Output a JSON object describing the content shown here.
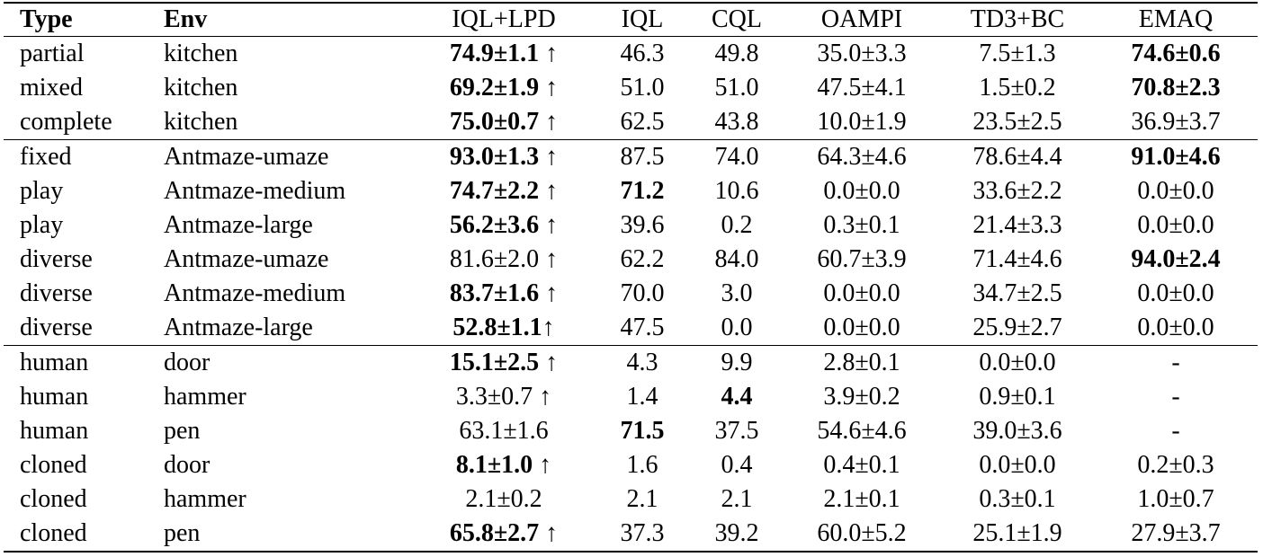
{
  "table": {
    "header": [
      "Type",
      "Env",
      "IQL+LPD",
      "IQL",
      "CQL",
      "OAMPI",
      "TD3+BC",
      "EMAQ"
    ],
    "header_bold": [
      true,
      true,
      false,
      false,
      false,
      false,
      false,
      false
    ],
    "groups": [
      {
        "rows": [
          {
            "cells": [
              "partial",
              "kitchen",
              "74.9±1.1 ↑",
              "46.3",
              "49.8",
              "35.0±3.3",
              "7.5±1.3",
              "74.6±0.6"
            ],
            "bold": [
              false,
              false,
              true,
              false,
              false,
              false,
              false,
              true
            ]
          },
          {
            "cells": [
              "mixed",
              "kitchen",
              "69.2±1.9 ↑",
              "51.0",
              "51.0",
              "47.5±4.1",
              "1.5±0.2",
              "70.8±2.3"
            ],
            "bold": [
              false,
              false,
              true,
              false,
              false,
              false,
              false,
              true
            ]
          },
          {
            "cells": [
              "complete",
              "kitchen",
              "75.0±0.7 ↑",
              "62.5",
              "43.8",
              "10.0±1.9",
              "23.5±2.5",
              "36.9±3.7"
            ],
            "bold": [
              false,
              false,
              true,
              false,
              false,
              false,
              false,
              false
            ]
          }
        ]
      },
      {
        "rows": [
          {
            "cells": [
              "fixed",
              "Antmaze-umaze",
              "93.0±1.3 ↑",
              "87.5",
              "74.0",
              "64.3±4.6",
              "78.6±4.4",
              "91.0±4.6"
            ],
            "bold": [
              false,
              false,
              true,
              false,
              false,
              false,
              false,
              true
            ]
          },
          {
            "cells": [
              "play",
              "Antmaze-medium",
              "74.7±2.2 ↑",
              "71.2",
              "10.6",
              "0.0±0.0",
              "33.6±2.2",
              "0.0±0.0"
            ],
            "bold": [
              false,
              false,
              true,
              true,
              false,
              false,
              false,
              false
            ]
          },
          {
            "cells": [
              "play",
              "Antmaze-large",
              "56.2±3.6 ↑",
              "39.6",
              "0.2",
              "0.3±0.1",
              "21.4±3.3",
              "0.0±0.0"
            ],
            "bold": [
              false,
              false,
              true,
              false,
              false,
              false,
              false,
              false
            ]
          },
          {
            "cells": [
              "diverse",
              "Antmaze-umaze",
              "81.6±2.0 ↑",
              "62.2",
              "84.0",
              "60.7±3.9",
              "71.4±4.6",
              "94.0±2.4"
            ],
            "bold": [
              false,
              false,
              false,
              false,
              false,
              false,
              false,
              true
            ]
          },
          {
            "cells": [
              "diverse",
              "Antmaze-medium",
              "83.7±1.6 ↑",
              "70.0",
              "3.0",
              "0.0±0.0",
              "34.7±2.5",
              "0.0±0.0"
            ],
            "bold": [
              false,
              false,
              true,
              false,
              false,
              false,
              false,
              false
            ]
          },
          {
            "cells": [
              "diverse",
              "Antmaze-large",
              "52.8±1.1↑",
              "47.5",
              "0.0",
              "0.0±0.0",
              "25.9±2.7",
              "0.0±0.0"
            ],
            "bold": [
              false,
              false,
              true,
              false,
              false,
              false,
              false,
              false
            ]
          }
        ]
      },
      {
        "rows": [
          {
            "cells": [
              "human",
              "door",
              "15.1±2.5 ↑",
              "4.3",
              "9.9",
              "2.8±0.1",
              "0.0±0.0",
              "-"
            ],
            "bold": [
              false,
              false,
              true,
              false,
              false,
              false,
              false,
              false
            ]
          },
          {
            "cells": [
              "human",
              "hammer",
              "3.3±0.7 ↑",
              "1.4",
              "4.4",
              "3.9±0.2",
              "0.9±0.1",
              "-"
            ],
            "bold": [
              false,
              false,
              false,
              false,
              true,
              false,
              false,
              false
            ]
          },
          {
            "cells": [
              "human",
              "pen",
              "63.1±1.6",
              "71.5",
              "37.5",
              "54.6±4.6",
              "39.0±3.6",
              "-"
            ],
            "bold": [
              false,
              false,
              false,
              true,
              false,
              false,
              false,
              false
            ]
          },
          {
            "cells": [
              "cloned",
              "door",
              "8.1±1.0 ↑",
              "1.6",
              "0.4",
              "0.4±0.1",
              "0.0±0.0",
              "0.2±0.3"
            ],
            "bold": [
              false,
              false,
              true,
              false,
              false,
              false,
              false,
              false
            ]
          },
          {
            "cells": [
              "cloned",
              "hammer",
              "2.1±0.2",
              "2.1",
              "2.1",
              "2.1±0.1",
              "0.3±0.1",
              "1.0±0.7"
            ],
            "bold": [
              false,
              false,
              false,
              false,
              false,
              false,
              false,
              false
            ]
          },
          {
            "cells": [
              "cloned",
              "pen",
              "65.8±2.7 ↑",
              "37.3",
              "39.2",
              "60.0±5.2",
              "25.1±1.9",
              "27.9±3.7"
            ],
            "bold": [
              false,
              false,
              true,
              false,
              false,
              false,
              false,
              false
            ]
          }
        ]
      }
    ]
  }
}
